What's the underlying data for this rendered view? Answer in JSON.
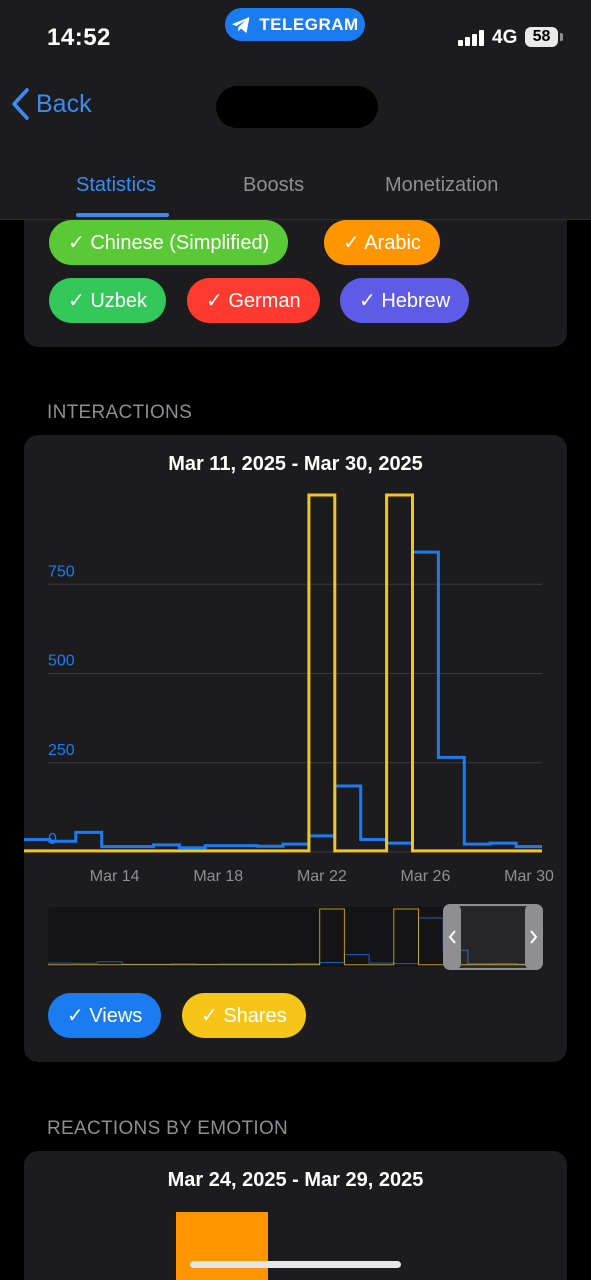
{
  "status_bar": {
    "time": "14:52",
    "app_name": "TELEGRAM",
    "network": "4G",
    "battery": "58"
  },
  "nav": {
    "back_label": "Back"
  },
  "tabs": [
    {
      "label": "Statistics",
      "active": true
    },
    {
      "label": "Boosts",
      "active": false
    },
    {
      "label": "Monetization",
      "active": false
    }
  ],
  "languages": {
    "chips": [
      {
        "label": "✓ Chinese (Simplified)",
        "color": "#5ac935"
      },
      {
        "label": "✓ Arabic",
        "color": "#ff9500"
      },
      {
        "label": "✓ Uzbek",
        "color": "#34c759"
      },
      {
        "label": "✓ German",
        "color": "#ff3b30"
      },
      {
        "label": "✓ Hebrew",
        "color": "#5e5ce6"
      }
    ]
  },
  "interactions": {
    "section_title": "INTERACTIONS",
    "date_range": "Mar 11, 2025 - Mar 30, 2025",
    "legend": [
      {
        "label": "✓ Views",
        "color": "#1a7cf0",
        "text_color": "#ffffff"
      },
      {
        "label": "✓ Shares",
        "color": "#f5c518",
        "text_color": "#ffffff"
      }
    ]
  },
  "chart_data": {
    "type": "line",
    "title": "Mar 11, 2025 - Mar 30, 2025",
    "x": [
      "Mar 11",
      "Mar 12",
      "Mar 13",
      "Mar 14",
      "Mar 15",
      "Mar 16",
      "Mar 17",
      "Mar 18",
      "Mar 19",
      "Mar 20",
      "Mar 21",
      "Mar 22",
      "Mar 23",
      "Mar 24",
      "Mar 25",
      "Mar 26",
      "Mar 27",
      "Mar 28",
      "Mar 29",
      "Mar 30"
    ],
    "x_tick_labels": [
      "Mar 14",
      "Mar 18",
      "Mar 22",
      "Mar 26",
      "Mar 30"
    ],
    "y_ticks": [
      0,
      250,
      500,
      750
    ],
    "ylim": [
      0,
      1000
    ],
    "grid": true,
    "series": [
      {
        "name": "Views",
        "color": "#1a7cf0",
        "values": [
          35,
          30,
          55,
          15,
          15,
          20,
          12,
          18,
          18,
          16,
          22,
          45,
          185,
          35,
          25,
          840,
          265,
          22,
          25,
          15
        ]
      },
      {
        "name": "Shares",
        "color": "#f5c518",
        "values": [
          3,
          3,
          3,
          3,
          3,
          3,
          3,
          3,
          3,
          3,
          3,
          1000,
          3,
          3,
          1000,
          3,
          3,
          3,
          3,
          3
        ]
      }
    ]
  },
  "reactions": {
    "section_title": "REACTIONS BY EMOTION",
    "date_range": "Mar 24, 2025 - Mar 29, 2025",
    "bar_color": "#ff9500"
  }
}
